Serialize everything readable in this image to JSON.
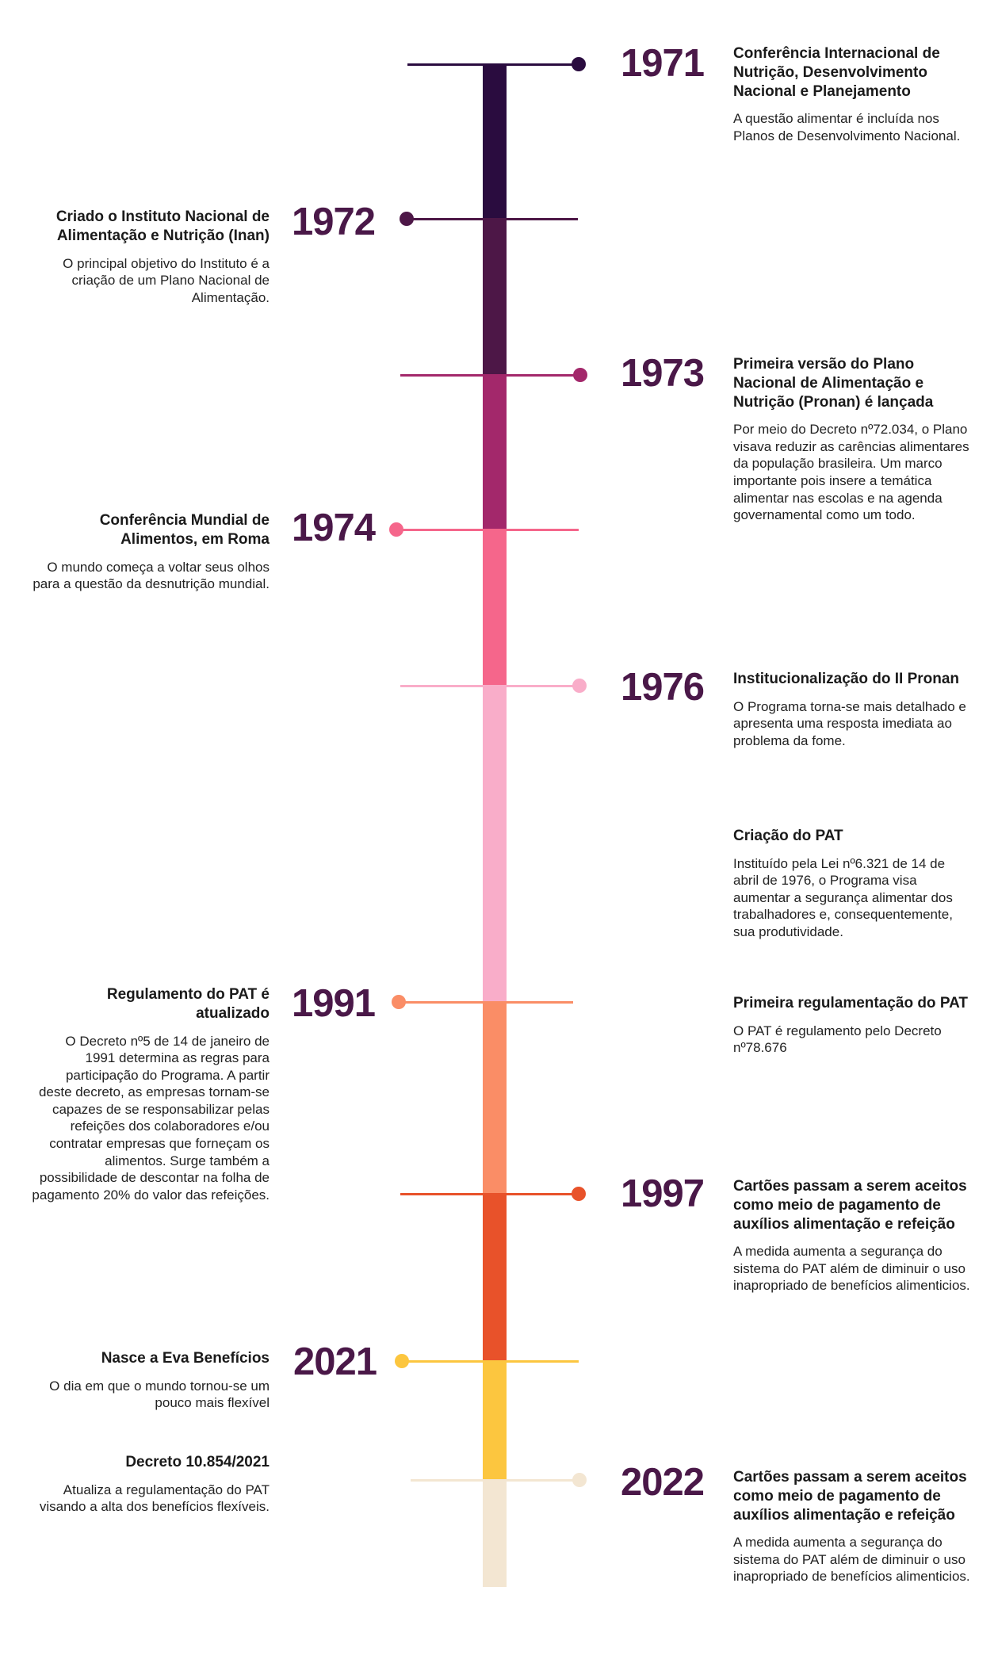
{
  "colors": {
    "year_text": "#4a1848",
    "timeline": [
      "#2a0c3f",
      "#4d1747",
      "#a3286b",
      "#f5668b",
      "#f9adc9",
      "#fa8d66",
      "#e8522a",
      "#fcc63f",
      "#f3e6d2"
    ]
  },
  "milestones": [
    {
      "year": "1971",
      "color": "#2a0c3f"
    },
    {
      "year": "1972",
      "color": "#4d1747"
    },
    {
      "year": "1973",
      "color": "#a3286b"
    },
    {
      "year": "1974",
      "color": "#f5668b"
    },
    {
      "year": "1976",
      "color": "#f9adc9"
    },
    {
      "year": "1991",
      "color": "#fa8d66"
    },
    {
      "year": "1997",
      "color": "#e8522a"
    },
    {
      "year": "2021",
      "color": "#fcc63f"
    },
    {
      "year": "2022",
      "color": "#f3e6d2"
    }
  ],
  "events": [
    {
      "title": "Conferência Internacional de Nutrição, Desenvolvimento Nacional e Planejamento",
      "text": "A questão alimentar é incluída nos Planos de Desenvolvimento Nacional."
    },
    {
      "title": "Criado o Instituto Nacional de Alimentação e Nutrição (Inan)",
      "text": "O principal objetivo do Instituto é a criação de um Plano Nacional de Alimentação."
    },
    {
      "title": "Primeira versão do Plano Nacional de Alimentação e Nutrição (Pronan) é lançada",
      "text": "Por meio do Decreto nº72.034, o Plano visava reduzir as carências alimentares da população brasileira. Um marco importante pois insere a temática alimentar nas escolas e na agenda governamental como um todo."
    },
    {
      "title": "Conferência Mundial de Alimentos, em Roma",
      "text": "O mundo começa a voltar seus olhos para a questão da desnutrição mundial."
    },
    {
      "title": "Institucionalização do II Pronan",
      "text": "O Programa torna-se mais detalhado e apresenta uma resposta imediata ao problema da fome."
    },
    {
      "title": "Criação do PAT",
      "text": "Instituído pela Lei nº6.321 de 14 de abril de 1976, o Programa visa aumentar a segurança alimentar dos trabalhadores e, consequentemente, sua produtividade."
    },
    {
      "title": "Regulamento do PAT é atualizado",
      "text": "O Decreto nº5 de 14 de janeiro de 1991 determina as regras para participação do Programa. A partir deste decreto, as empresas tornam-se capazes de se responsabilizar pelas refeições dos colaboradores e/ou contratar empresas que forneçam os alimentos. Surge também a possibilidade de descontar na folha de pagamento 20% do valor das refeições."
    },
    {
      "title": "Primeira regulamentação do PAT",
      "text": "O PAT é regulamento pelo Decreto nº78.676"
    },
    {
      "title": "Cartões passam a serem aceitos como meio de pagamento de auxílios alimentação e refeição",
      "text": "A medida aumenta a segurança do sistema do PAT além de diminuir o uso inapropriado de benefícios alimenticios."
    },
    {
      "title": "Nasce a Eva Benefícios",
      "text": "O dia em que o mundo tornou-se um pouco mais flexível"
    },
    {
      "title": "Decreto 10.854/2021",
      "text": "Atualiza a regulamentação do PAT visando a alta dos benefícios flexíveis."
    },
    {
      "title": "Cartões passam a serem aceitos como meio de pagamento de auxílios alimentação e refeição",
      "text": "A medida aumenta a segurança do sistema do PAT além de diminuir o uso inapropriado de benefícios alimenticios."
    }
  ]
}
